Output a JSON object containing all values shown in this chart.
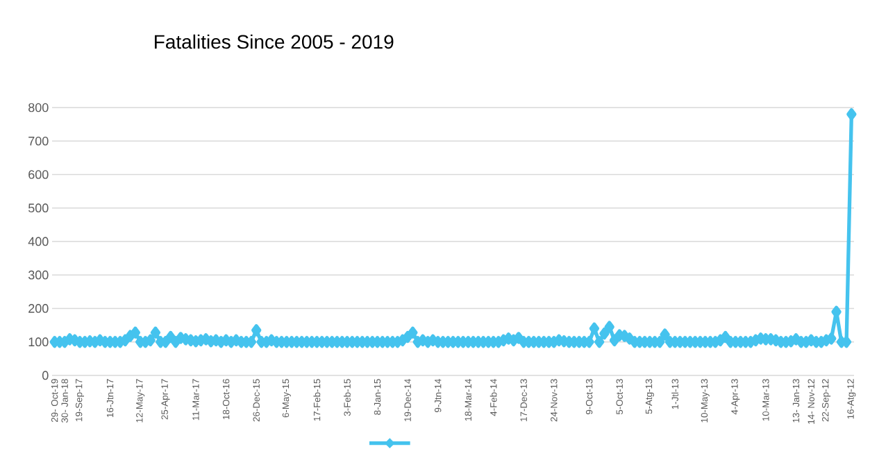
{
  "chart_data": {
    "type": "line",
    "title": "Fatalities Since 2005 - 2019",
    "categories": [
      "29- Oct-19",
      null,
      "30- Jan-18",
      null,
      null,
      "19-Sep-17",
      null,
      null,
      null,
      null,
      null,
      "16-Jtn-17",
      null,
      null,
      null,
      null,
      null,
      "12-May-17",
      null,
      null,
      null,
      null,
      "25-Apr-17",
      null,
      null,
      null,
      null,
      null,
      "11-Mar-17",
      null,
      null,
      null,
      null,
      null,
      "18-Oct-16",
      null,
      null,
      null,
      null,
      null,
      "26-Dec-15",
      null,
      null,
      null,
      null,
      null,
      "6-May-15",
      null,
      null,
      null,
      null,
      null,
      "17-Feb-15",
      null,
      null,
      null,
      null,
      null,
      "3-Feb-15",
      null,
      null,
      null,
      null,
      null,
      "8-Jan-15",
      null,
      null,
      null,
      null,
      null,
      "19-Dec-14",
      null,
      null,
      null,
      null,
      null,
      "9-Jtn-14",
      null,
      null,
      null,
      null,
      null,
      "18-Mar-14",
      null,
      null,
      null,
      null,
      "4-Feb-14",
      null,
      null,
      null,
      null,
      null,
      "17-Dec-13",
      null,
      null,
      null,
      null,
      null,
      "24-Nov-13",
      null,
      null,
      null,
      null,
      null,
      null,
      "9-Oct-13",
      null,
      null,
      null,
      null,
      null,
      "5-Oct-13",
      null,
      null,
      null,
      null,
      null,
      "5-Atg-13",
      null,
      null,
      null,
      null,
      "1-Jtl-13",
      null,
      null,
      null,
      null,
      null,
      "10-May-13",
      null,
      null,
      null,
      null,
      null,
      "4-Apr-13",
      null,
      null,
      null,
      null,
      null,
      "10-Mar-13",
      null,
      null,
      null,
      null,
      null,
      "13- Jan-13",
      null,
      null,
      "14- Nov-12",
      null,
      null,
      "22-Sep-12",
      null,
      null,
      null,
      null,
      "16-Atg-12"
    ],
    "values": [
      100,
      100,
      100,
      108,
      105,
      100,
      100,
      102,
      100,
      105,
      100,
      100,
      100,
      100,
      105,
      118,
      128,
      100,
      100,
      105,
      128,
      100,
      100,
      115,
      100,
      112,
      108,
      105,
      102,
      105,
      108,
      102,
      105,
      100,
      105,
      100,
      105,
      100,
      100,
      100,
      135,
      100,
      100,
      105,
      100,
      100,
      100,
      100,
      100,
      100,
      100,
      100,
      100,
      100,
      100,
      100,
      100,
      100,
      100,
      100,
      100,
      100,
      100,
      100,
      100,
      100,
      100,
      100,
      100,
      105,
      115,
      128,
      100,
      105,
      100,
      105,
      100,
      100,
      100,
      100,
      100,
      100,
      100,
      100,
      100,
      100,
      100,
      100,
      100,
      105,
      110,
      105,
      112,
      100,
      100,
      100,
      100,
      100,
      100,
      100,
      105,
      102,
      100,
      100,
      100,
      100,
      100,
      140,
      100,
      125,
      145,
      105,
      120,
      118,
      110,
      100,
      100,
      100,
      100,
      100,
      100,
      122,
      100,
      100,
      100,
      100,
      100,
      100,
      100,
      100,
      100,
      100,
      105,
      115,
      100,
      100,
      100,
      100,
      100,
      105,
      110,
      108,
      108,
      105,
      100,
      100,
      102,
      108,
      100,
      100,
      105,
      100,
      100,
      105,
      110,
      190,
      100,
      100,
      780
    ],
    "color": "#45c3ee",
    "ylim": [
      0,
      800
    ],
    "yticks": [
      0,
      100,
      200,
      300,
      400,
      500,
      600,
      700,
      800
    ],
    "grid": "y",
    "marker": "diamond",
    "line_style": "solid"
  }
}
